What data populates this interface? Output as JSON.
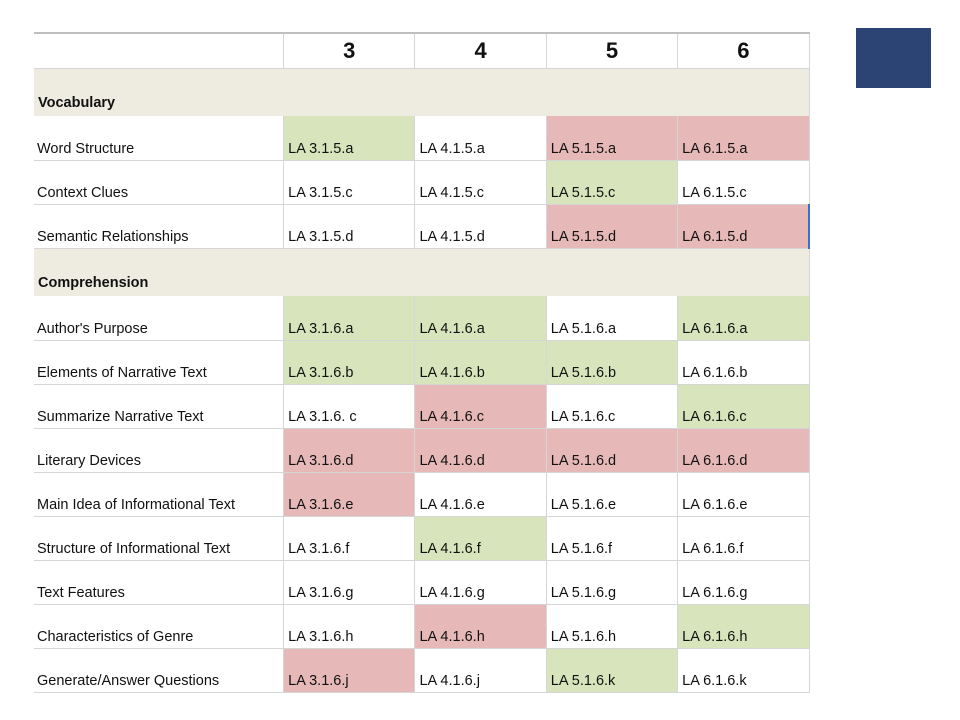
{
  "colors": {
    "green": "#d8e4bc",
    "red": "#e6b9b8",
    "white": "#ffffff",
    "section": "#eeece1",
    "accent_square": "#2b4474"
  },
  "header": [
    "",
    "3",
    "4",
    "5",
    "6"
  ],
  "sections": [
    {
      "title": "Vocabulary",
      "rows": [
        {
          "label": "Word Structure",
          "cells": [
            {
              "text": "LA 3.1.5.a",
              "status": "green"
            },
            {
              "text": "LA 4.1.5.a",
              "status": "white"
            },
            {
              "text": "LA 5.1.5.a",
              "status": "red"
            },
            {
              "text": "LA 6.1.5.a",
              "status": "red"
            }
          ]
        },
        {
          "label": "Context Clues",
          "cells": [
            {
              "text": "LA 3.1.5.c",
              "status": "white"
            },
            {
              "text": "LA 4.1.5.c",
              "status": "white"
            },
            {
              "text": "LA 5.1.5.c",
              "status": "green"
            },
            {
              "text": "LA 6.1.5.c",
              "status": "white"
            }
          ]
        },
        {
          "label": "Semantic Relationships",
          "cells": [
            {
              "text": "LA 3.1.5.d",
              "status": "white"
            },
            {
              "text": " LA 4.1.5.d",
              "status": "white"
            },
            {
              "text": "LA 5.1.5.d",
              "status": "red"
            },
            {
              "text": "LA 6.1.5.d",
              "status": "red"
            }
          ]
        }
      ]
    },
    {
      "title": "Comprehension",
      "rows": [
        {
          "label": "Author's Purpose",
          "cells": [
            {
              "text": "LA 3.1.6.a",
              "status": "green"
            },
            {
              "text": "LA 4.1.6.a",
              "status": "green"
            },
            {
              "text": "LA 5.1.6.a",
              "status": "white"
            },
            {
              "text": "LA 6.1.6.a",
              "status": "green"
            }
          ]
        },
        {
          "label": "Elements of Narrative Text",
          "cells": [
            {
              "text": "LA 3.1.6.b",
              "status": "green"
            },
            {
              "text": "LA 4.1.6.b",
              "status": "green"
            },
            {
              "text": "LA 5.1.6.b",
              "status": "green"
            },
            {
              "text": "LA 6.1.6.b",
              "status": "white"
            }
          ]
        },
        {
          "label": "Summarize Narrative Text",
          "cells": [
            {
              "text": "LA 3.1.6. c",
              "status": "white"
            },
            {
              "text": "LA 4.1.6.c",
              "status": "red"
            },
            {
              "text": "LA 5.1.6.c",
              "status": "white"
            },
            {
              "text": "LA 6.1.6.c",
              "status": "green"
            }
          ]
        },
        {
          "label": "Literary Devices",
          "cells": [
            {
              "text": "LA 3.1.6.d",
              "status": "red"
            },
            {
              "text": "LA 4.1.6.d",
              "status": "red"
            },
            {
              "text": "LA 5.1.6.d",
              "status": "red"
            },
            {
              "text": "LA 6.1.6.d",
              "status": "red"
            }
          ]
        },
        {
          "label": "Main Idea of Informational Text",
          "cells": [
            {
              "text": "LA 3.1.6.e",
              "status": "red"
            },
            {
              "text": "LA 4.1.6.e",
              "status": "white"
            },
            {
              "text": "LA 5.1.6.e",
              "status": "white"
            },
            {
              "text": "LA 6.1.6.e",
              "status": "white"
            }
          ]
        },
        {
          "label": "Structure of Informational Text",
          "cells": [
            {
              "text": "LA 3.1.6.f",
              "status": "white"
            },
            {
              "text": "LA 4.1.6.f",
              "status": "green"
            },
            {
              "text": "LA 5.1.6.f",
              "status": "white"
            },
            {
              "text": "LA 6.1.6.f",
              "status": "white"
            }
          ]
        },
        {
          "label": "Text Features",
          "cells": [
            {
              "text": "LA 3.1.6.g",
              "status": "white"
            },
            {
              "text": "LA 4.1.6.g",
              "status": "white"
            },
            {
              "text": "LA 5.1.6.g",
              "status": "white"
            },
            {
              "text": "LA 6.1.6.g",
              "status": "white"
            }
          ]
        },
        {
          "label": "Characteristics of Genre",
          "cells": [
            {
              "text": "LA 3.1.6.h",
              "status": "white"
            },
            {
              "text": "LA 4.1.6.h",
              "status": "red"
            },
            {
              "text": "LA 5.1.6.h",
              "status": "white"
            },
            {
              "text": "LA 6.1.6.h",
              "status": "green"
            }
          ]
        },
        {
          "label": "Generate/Answer Questions",
          "cells": [
            {
              "text": "LA 3.1.6.j",
              "status": "red"
            },
            {
              "text": "LA 4.1.6.j",
              "status": "white"
            },
            {
              "text": "LA 5.1.6.k",
              "status": "green"
            },
            {
              "text": "LA 6.1.6.k",
              "status": "white"
            }
          ]
        }
      ]
    }
  ]
}
